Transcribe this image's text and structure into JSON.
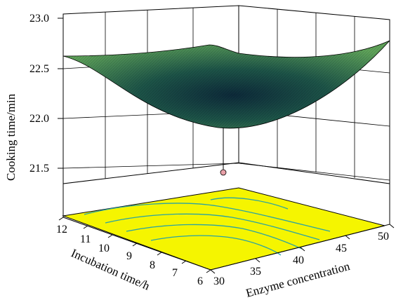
{
  "chart_data": {
    "type": "surface",
    "z_axis": {
      "label": "Cooking time/min",
      "ticks": [
        "21.5",
        "22.0",
        "22.5",
        "23.0"
      ],
      "range": [
        21.5,
        23.0
      ]
    },
    "x_axis": {
      "label": "Enzyme concentration",
      "ticks": [
        "30",
        "35",
        "40",
        "45",
        "50"
      ],
      "range": [
        30,
        50
      ]
    },
    "y_axis": {
      "label": "Incubation time/h",
      "ticks": [
        "6",
        "7",
        "8",
        "9",
        "10",
        "11",
        "12"
      ],
      "range": [
        6,
        12
      ]
    },
    "surface": {
      "grid_x": [
        30,
        35,
        40,
        45,
        50
      ],
      "grid_y": [
        6,
        8,
        10,
        12
      ],
      "z": [
        [
          22.75,
          22.55,
          22.45,
          22.45,
          22.55
        ],
        [
          22.45,
          22.2,
          22.05,
          22.05,
          22.2
        ],
        [
          22.45,
          22.15,
          21.95,
          21.95,
          22.1
        ],
        [
          22.6,
          22.3,
          22.1,
          22.1,
          22.25
        ]
      ],
      "minimum": {
        "enzyme": 41,
        "incubation": 10,
        "cooking_time": 21.9
      }
    },
    "design_point": {
      "enzyme": 41,
      "incubation": 10,
      "cooking_time": 21.62
    },
    "grid": true,
    "colors": {
      "surface_low": "#0d2a3a",
      "surface_high": "#5fa35a",
      "floor": "#f5f500",
      "contour": "#2aa3a3",
      "point": "#e8a0a8"
    }
  }
}
